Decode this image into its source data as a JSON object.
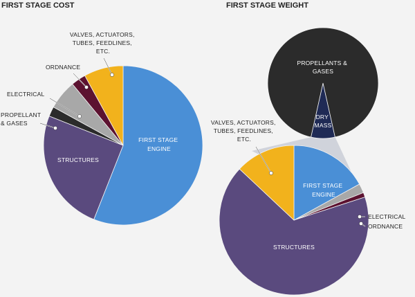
{
  "colors": {
    "engine": "#4a8fd6",
    "structures": "#5a4a7e",
    "propellant": "#2b2b2b",
    "electrical": "#a8a8a8",
    "ordnance": "#5c1230",
    "valves": "#f2b21c",
    "drymass": "#1f2a55",
    "funnel": "#c9ccd6",
    "background": "#f3f3f3"
  },
  "chart_data": [
    {
      "type": "pie",
      "title": "FIRST STAGE COST",
      "categories": [
        "FIRST STAGE ENGINE",
        "STRUCTURES",
        "PROPELLANT & GASES",
        "ELECTRICAL",
        "ORDNANCE",
        "VALVES, ACTUATORS, TUBES, FEEDLINES, ETC."
      ],
      "values": [
        56,
        25,
        2,
        6,
        3,
        8
      ],
      "label_lines": {
        "engine": [
          "FIRST STAGE",
          "ENGINE"
        ],
        "structures": [
          "STRUCTURES"
        ],
        "propellant": [
          "PROPELLANT",
          "& GASES"
        ],
        "electrical": [
          "ELECTRICAL"
        ],
        "ordnance": [
          "ORDNANCE"
        ],
        "valves": [
          "VALVES, ACTUATORS,",
          "TUBES, FEEDLINES,",
          "ETC."
        ]
      }
    },
    {
      "type": "pie",
      "title": "FIRST STAGE WEIGHT",
      "top_pie": {
        "categories": [
          "PROPELLANTS & GASES",
          "DRY MASS"
        ],
        "values": [
          93,
          7
        ],
        "label_lines": {
          "propellants": [
            "PROPELLANTS &",
            "GASES"
          ],
          "drymass": [
            "DRY",
            "MASS"
          ]
        }
      },
      "categories": [
        "FIRST STAGE ENGINE",
        "ELECTRICAL",
        "ORDNANCE",
        "STRUCTURES",
        "VALVES, ACTUATORS, TUBES, FEEDLINES, ETC."
      ],
      "values": [
        17,
        2,
        1,
        67,
        13
      ],
      "label_lines": {
        "engine": [
          "FIRST STAGE",
          "ENGINE"
        ],
        "electrical": [
          "ELECTRICAL"
        ],
        "ordnance": [
          "ORDNANCE"
        ],
        "structures": [
          "STRUCTURES"
        ],
        "valves": [
          "VALVES, ACTUATORS,",
          "TUBES, FEEDLINES,",
          "ETC."
        ]
      }
    }
  ]
}
